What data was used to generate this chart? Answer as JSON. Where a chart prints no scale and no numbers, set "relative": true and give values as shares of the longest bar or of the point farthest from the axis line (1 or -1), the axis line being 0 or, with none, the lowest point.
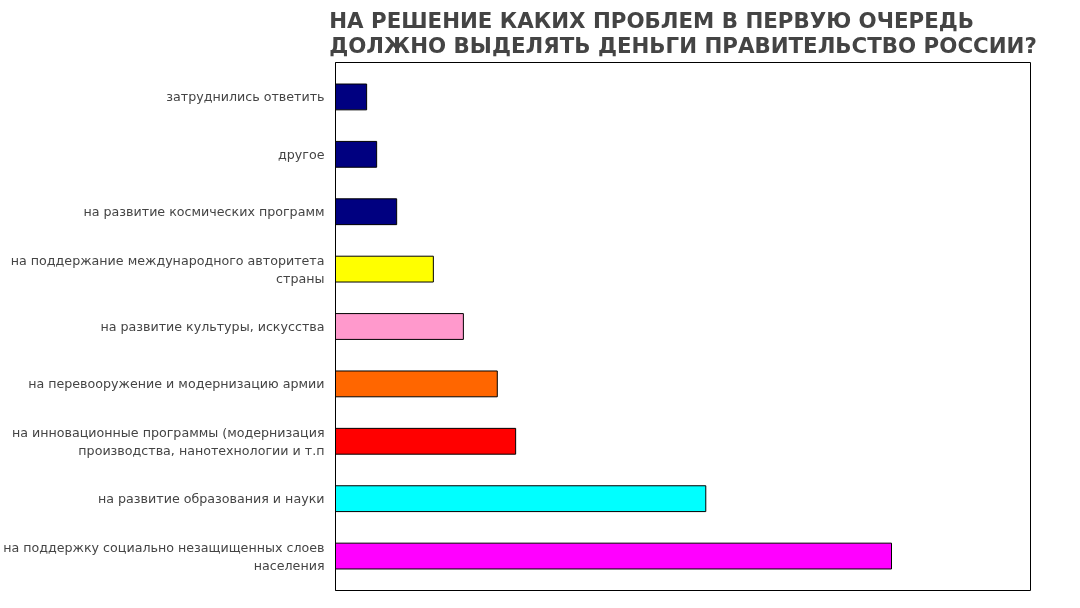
{
  "chart_data": {
    "type": "bar",
    "orientation": "horizontal",
    "relative": true,
    "title": "НА РЕШЕНИЕ КАКИХ ПРОБЛЕМ В ПЕРВУЮ ОЧЕРЕДЬ ДОЛЖНО ВЫДЕЛЯТЬ ДЕНЬГИ ПРАВИТЕЛЬСТВО РОССИИ?",
    "categories": [
      "затруднились ответить",
      "другое",
      "на развитие космических программ",
      "на поддержание международного авторитета страны",
      "на развитие культуры, искусства",
      "на перевооружение и модернизацию армии",
      "на инновационные программы (модернизация производства, нанотехнологии и т.п",
      "на развитие образования и науки",
      "на поддержку социально незащищенных слоев населения"
    ],
    "values": [
      0.056,
      0.074,
      0.11,
      0.176,
      0.23,
      0.291,
      0.324,
      0.666,
      1
    ],
    "colors": [
      "#000080",
      "#000080",
      "#000080",
      "#ffff00",
      "#ff99cc",
      "#ff6600",
      "#ff0000",
      "#00ffff",
      "#ff00ff"
    ]
  }
}
